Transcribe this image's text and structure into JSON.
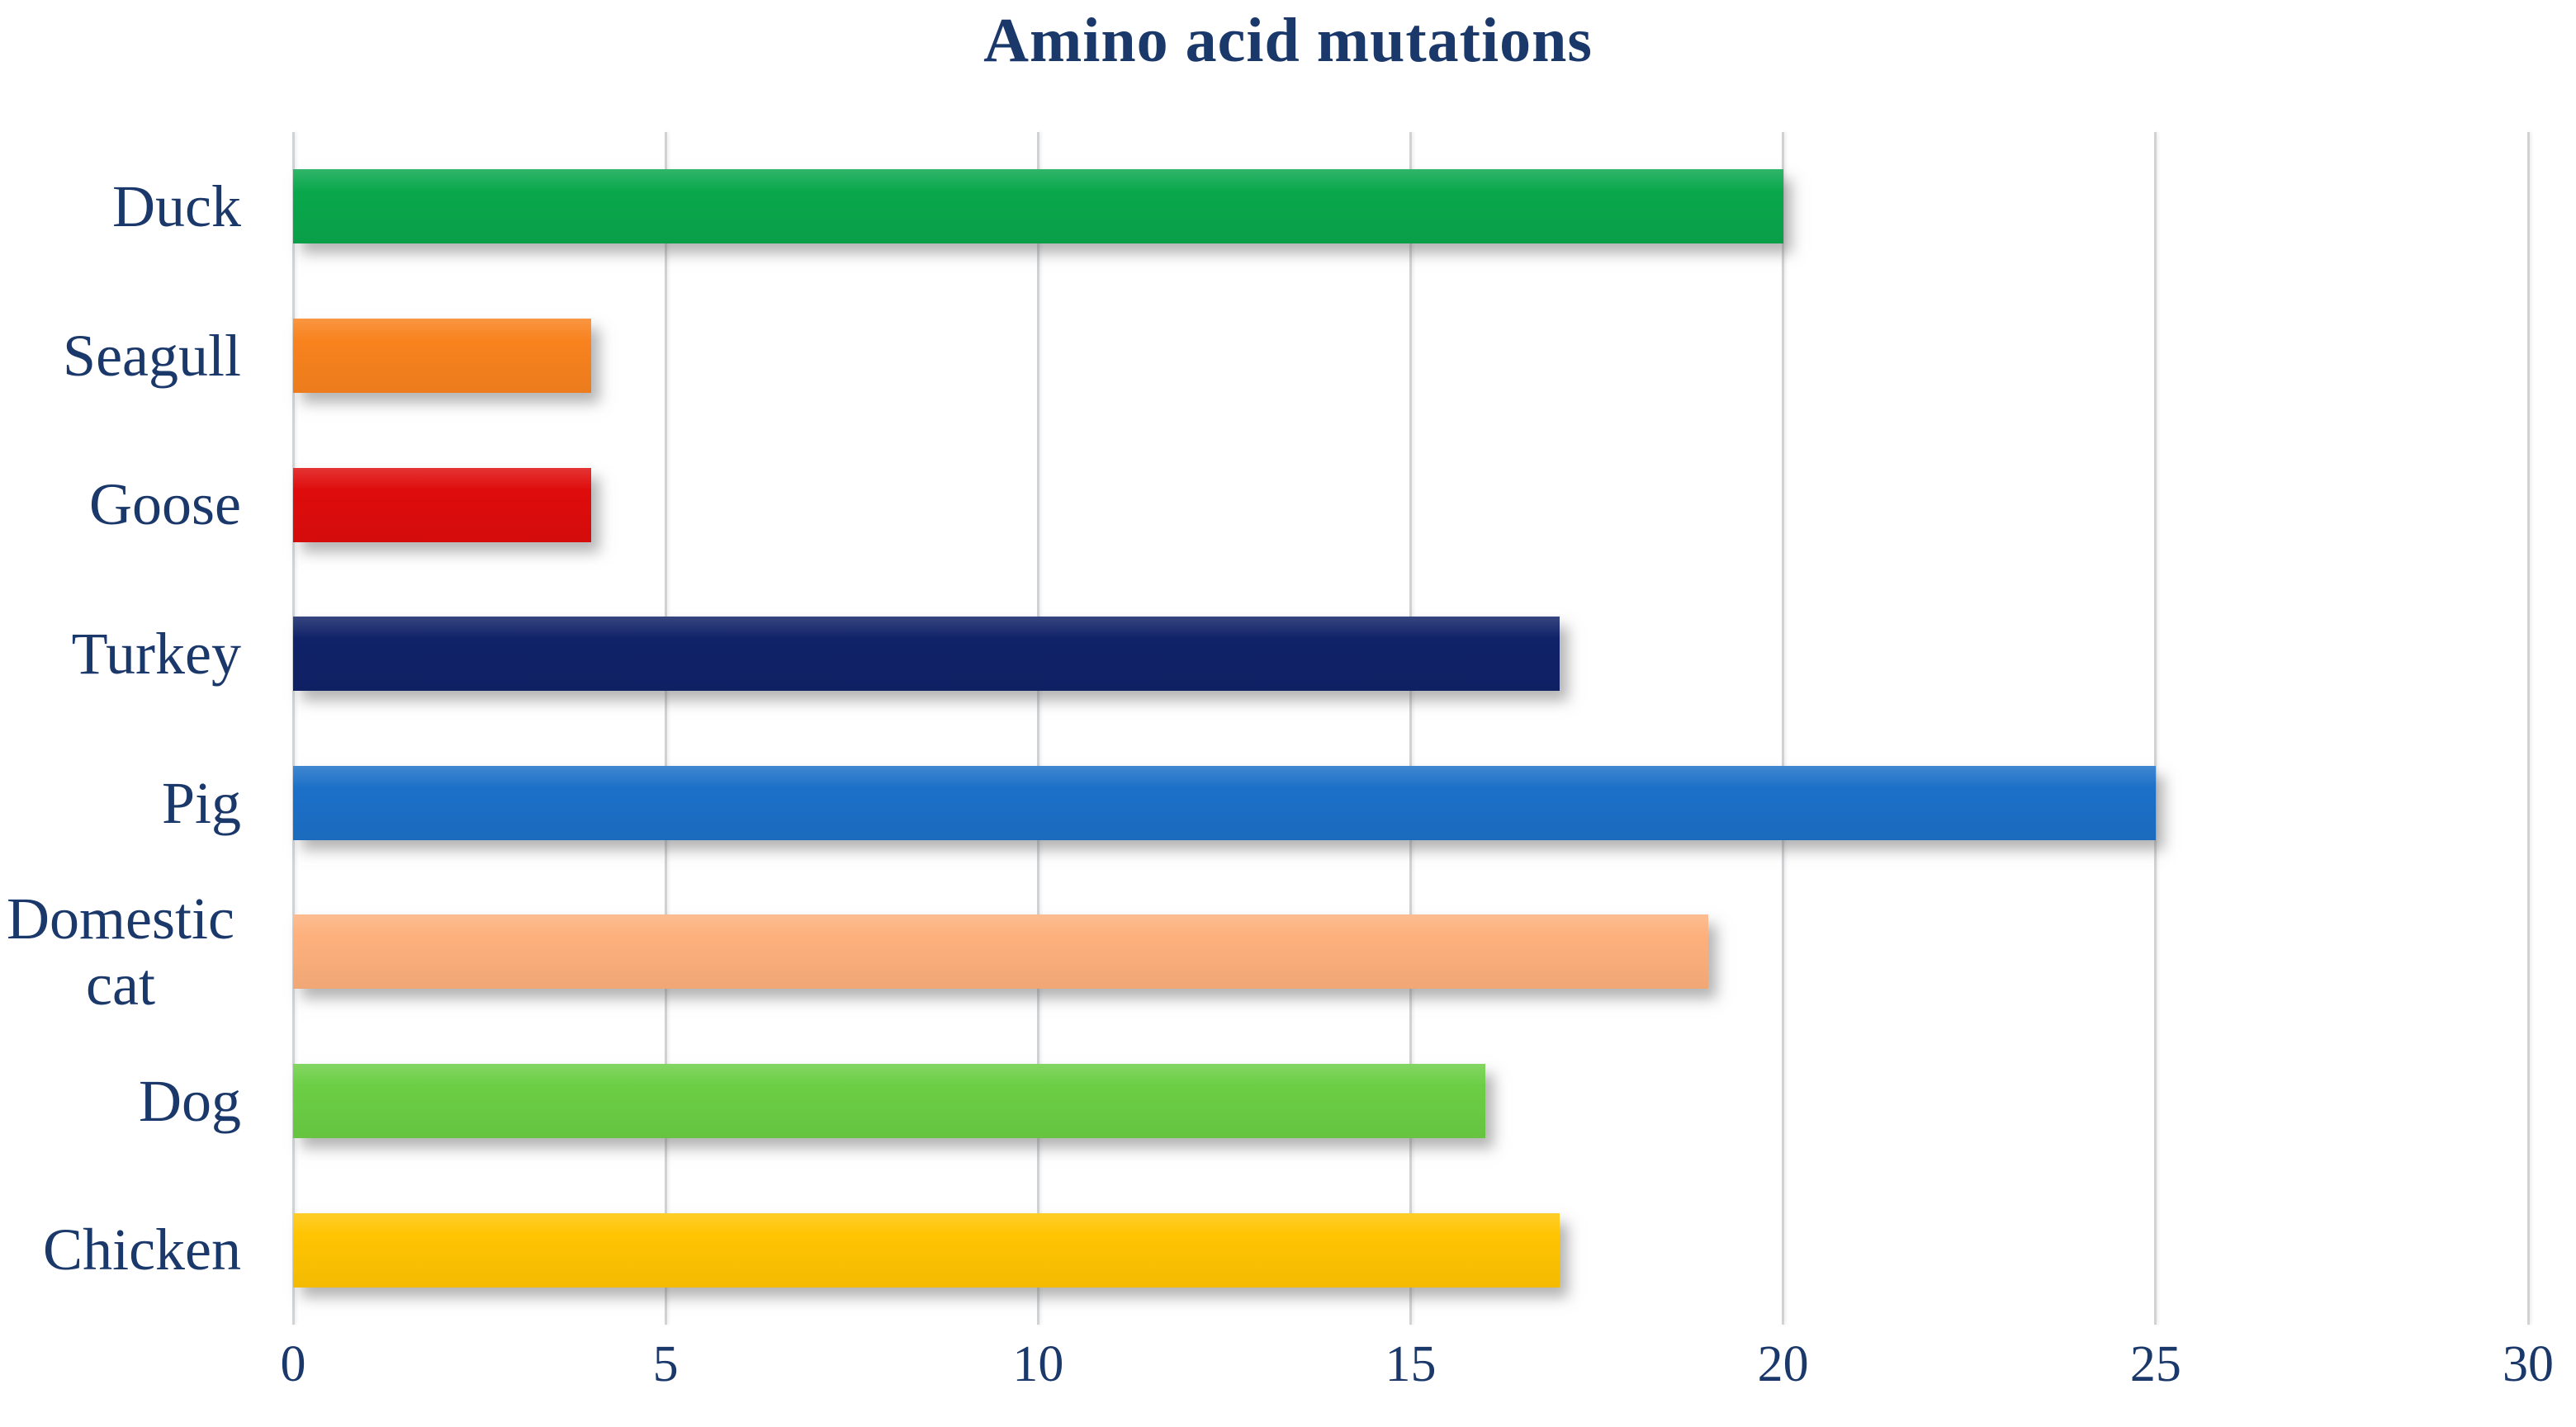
{
  "title": "Amino acid mutations",
  "colors": {
    "text": "#1B386B",
    "gridline": "#CFD3D6",
    "background": "#FFFFFF"
  },
  "chart_data": {
    "type": "bar",
    "orientation": "horizontal",
    "title": "Amino acid mutations",
    "categories": [
      "Duck",
      "Seagull",
      "Goose",
      "Turkey",
      "Pig",
      "Domestic cat",
      "Dog",
      "Chicken"
    ],
    "values": [
      20,
      4,
      4,
      17,
      25,
      19,
      16,
      17
    ],
    "bar_colors": [
      "#09A74C",
      "#F8821E",
      "#DF0C0C",
      "#102268",
      "#1C70C8",
      "#FDB07C",
      "#6BCE44",
      "#FFC402"
    ],
    "xlabel": "",
    "ylabel": "",
    "xlim": [
      0,
      30
    ],
    "x_ticks": [
      0,
      5,
      10,
      15,
      20,
      25,
      30
    ],
    "grid": "vertical-only",
    "legend": "none"
  }
}
